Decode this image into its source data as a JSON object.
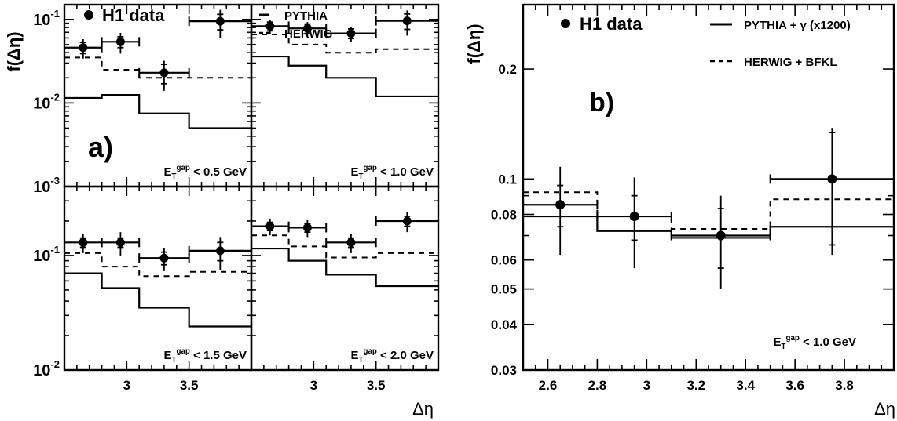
{
  "chart_data": [
    {
      "id": "a",
      "type": "step",
      "panel_label": "a)",
      "ylabel": "f(Δη)",
      "xlabel": "Δη",
      "xlim": [
        2.5,
        4.0
      ],
      "x_ticks": [
        "3",
        "3.5"
      ],
      "y_scale": "log",
      "legend": {
        "data_label": "H1 data",
        "pythia_label": "PYTHIA",
        "herwig_label": "HERWIG"
      },
      "bins": [
        [
          2.5,
          2.8
        ],
        [
          2.8,
          3.1
        ],
        [
          3.1,
          3.5
        ],
        [
          3.5,
          4.0
        ]
      ],
      "bin_centers": [
        2.65,
        2.95,
        3.3,
        3.75
      ],
      "subplots": [
        {
          "id": "a1",
          "cut": "E_T^gap < 0.5 GeV",
          "ylim": [
            0.001,
            0.15
          ],
          "y_tick_labels": [
            {
              "base": "10",
              "exp": "-3",
              "value": 0.001
            },
            {
              "base": "10",
              "exp": "-2",
              "value": 0.01
            },
            {
              "base": "10",
              "exp": "-1",
              "value": 0.1
            }
          ],
          "data": [
            0.046,
            0.054,
            0.023,
            0.095
          ],
          "err_stat": [
            0.007,
            0.008,
            0.006,
            0.02
          ],
          "err_tot": [
            0.012,
            0.015,
            0.009,
            0.035
          ],
          "pythia": [
            0.0115,
            0.0125,
            0.0075,
            0.005
          ],
          "herwig": [
            0.035,
            0.025,
            0.02,
            0.02
          ]
        },
        {
          "id": "a2",
          "cut": "E_T^gap < 1.0 GeV",
          "ylim": [
            0.001,
            0.15
          ],
          "y_tick_labels": [],
          "data": [
            0.083,
            0.078,
            0.068,
            0.096
          ],
          "err_stat": [
            0.01,
            0.01,
            0.009,
            0.02
          ],
          "err_tot": [
            0.016,
            0.015,
            0.014,
            0.032
          ],
          "pythia": [
            0.036,
            0.028,
            0.02,
            0.012
          ],
          "herwig": [
            0.066,
            0.05,
            0.04,
            0.044
          ]
        },
        {
          "id": "a3",
          "cut": "E_T^gap < 1.5 GeV",
          "ylim": [
            0.01,
            0.4
          ],
          "y_tick_labels": [
            {
              "base": "10",
              "exp": "-2",
              "value": 0.01
            },
            {
              "base": "10",
              "exp": "-1",
              "value": 0.1
            }
          ],
          "data": [
            0.13,
            0.13,
            0.095,
            0.11
          ],
          "err_stat": [
            0.012,
            0.012,
            0.012,
            0.02
          ],
          "err_tot": [
            0.025,
            0.03,
            0.022,
            0.035
          ],
          "pythia": [
            0.07,
            0.052,
            0.035,
            0.024
          ],
          "herwig": [
            0.105,
            0.08,
            0.066,
            0.072
          ]
        },
        {
          "id": "a4",
          "cut": "E_T^gap < 2.0 GeV",
          "ylim": [
            0.01,
            0.4
          ],
          "y_tick_labels": [],
          "data": [
            0.18,
            0.175,
            0.13,
            0.2
          ],
          "err_stat": [
            0.015,
            0.015,
            0.012,
            0.02
          ],
          "err_tot": [
            0.03,
            0.03,
            0.025,
            0.04
          ],
          "pythia": [
            0.115,
            0.09,
            0.068,
            0.054
          ],
          "herwig": [
            0.15,
            0.12,
            0.096,
            0.105
          ]
        }
      ]
    },
    {
      "id": "b",
      "type": "step",
      "panel_label": "b)",
      "ylabel": "f(Δη)",
      "xlabel": "Δη",
      "cut": "E_T^gap < 1.0 GeV",
      "xlim": [
        2.5,
        4.0
      ],
      "x_ticks": [
        "2.6",
        "2.8",
        "3",
        "3.2",
        "3.4",
        "3.6",
        "3.8"
      ],
      "ylim": [
        0.03,
        0.3
      ],
      "y_scale": "log",
      "y_ticks": [
        "0.03",
        "0.04",
        "0.05",
        "0.06",
        "0.08",
        "0.1",
        "0.2"
      ],
      "legend": {
        "data_label": "H1 data",
        "pythia_label": "PYTHIA + γ (x1200)",
        "herwig_label": "HERWIG + BFKL"
      },
      "bins": [
        [
          2.5,
          2.8
        ],
        [
          2.8,
          3.1
        ],
        [
          3.1,
          3.5
        ],
        [
          3.5,
          4.0
        ]
      ],
      "bin_centers": [
        2.65,
        2.95,
        3.3,
        3.75
      ],
      "data": [
        0.085,
        0.079,
        0.07,
        0.1
      ],
      "err_stat": [
        0.011,
        0.011,
        0.013,
        0.034
      ],
      "err_tot": [
        0.023,
        0.022,
        0.02,
        0.038
      ],
      "pythia": [
        0.079,
        0.072,
        0.069,
        0.074
      ],
      "herwig": [
        0.092,
        0.079,
        0.073,
        0.088
      ]
    }
  ]
}
